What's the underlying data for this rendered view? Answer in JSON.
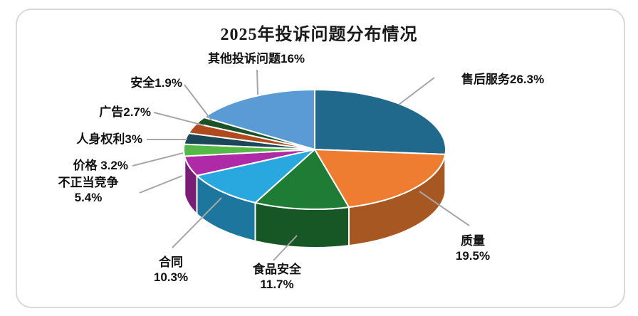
{
  "chart_data": {
    "type": "pie",
    "style": "3d",
    "title": "2025年投诉问题分布情况",
    "unit": "%",
    "total": 100,
    "start_angle": "12-o-clock",
    "direction": "clockwise",
    "legend": "none",
    "categories": [
      "售后服务",
      "质量",
      "食品安全",
      "合同",
      "不正当竞争",
      "价格",
      "人身权利",
      "广告",
      "安全",
      "其他投诉问题"
    ],
    "values": [
      26.3,
      19.5,
      11.7,
      10.3,
      5.4,
      3.2,
      3,
      2.7,
      1.9,
      16
    ],
    "labels": [
      "售后服务26.3%",
      "质量\n19.5%",
      "食品安全\n11.7%",
      "合同\n10.3%",
      "不正当竞争\n5.4%",
      "价格 3.2%",
      "人身权利3%",
      "广告2.7%",
      "安全1.9%",
      "其他投诉问题16%"
    ],
    "colors": [
      "#20688C",
      "#EE7D31",
      "#1F7C35",
      "#29A8E0",
      "#AF2AA6",
      "#55B947",
      "#1B4759",
      "#B0491D",
      "#1C5228",
      "#5B9BD5"
    ],
    "leader_line_color": "#A6A6A6",
    "slice_border_color": "#FFFFFF",
    "frame_border_color": "#D9D9D9"
  }
}
